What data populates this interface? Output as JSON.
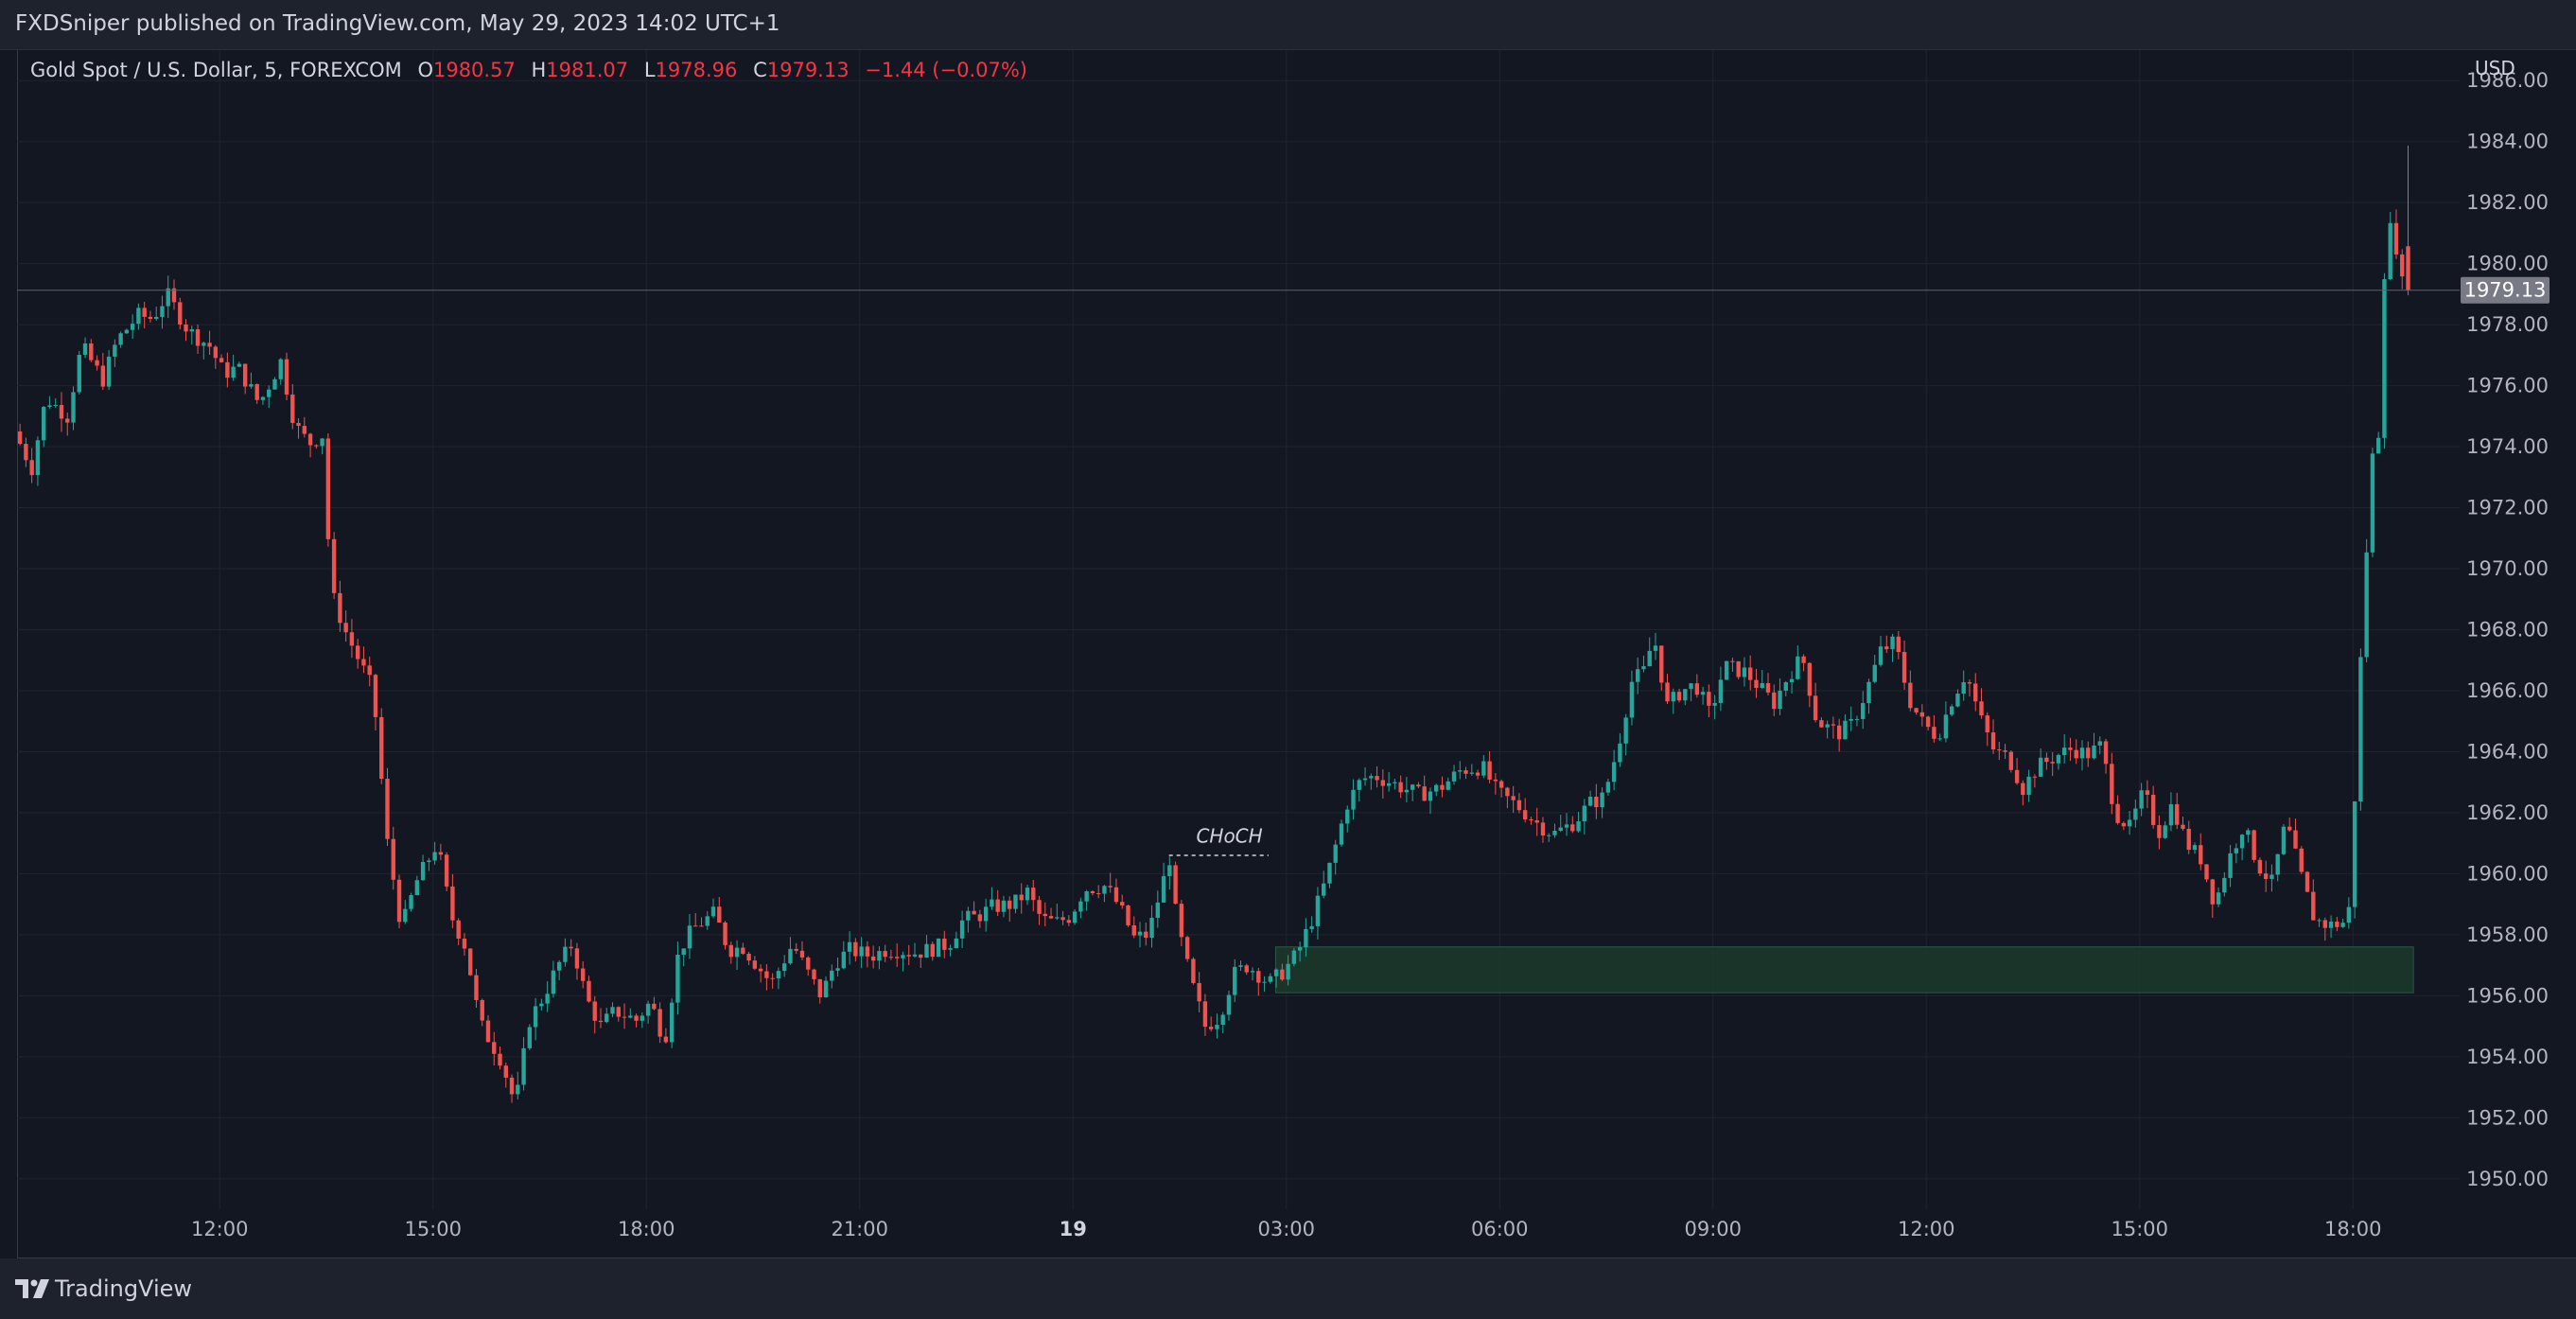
{
  "header": {
    "publisher_line": "FXDSniper published on TradingView.com, May 29, 2023 14:02 UTC+1"
  },
  "legend": {
    "symbol": "Gold Spot / U.S. Dollar, 5, FOREXCOM",
    "open_label": "O",
    "open": "1980.57",
    "high_label": "H",
    "high": "1981.07",
    "low_label": "L",
    "low": "1978.96",
    "close_label": "C",
    "close": "1979.13",
    "change": "−1.44 (−0.07%)"
  },
  "price_axis": {
    "currency": "USD",
    "last_price_label": "1979.13"
  },
  "colors": {
    "up": "#26a69a",
    "down": "#ef5350",
    "background": "#131722",
    "zone": "#1c3a2c",
    "grid": "#1f2430"
  },
  "footer": {
    "brand": "TradingView",
    "logo_icon": "tradingview-logo-icon"
  },
  "chart_data": {
    "type": "candlestick",
    "symbol": "Gold Spot / U.S. Dollar",
    "interval": "5",
    "exchange": "FOREXCOM",
    "currency": "USD",
    "last_price": 1979.13,
    "ylim": [
      1949,
      1987
    ],
    "grid": true,
    "y_ticks": [
      1950,
      1952,
      1954,
      1956,
      1958,
      1960,
      1962,
      1964,
      1966,
      1968,
      1970,
      1972,
      1974,
      1976,
      1978,
      1980,
      1982,
      1984,
      1986
    ],
    "y_tick_labels": [
      "1950.00",
      "1952.00",
      "1954.00",
      "1956.00",
      "1958.00",
      "1960.00",
      "1962.00",
      "1964.00",
      "1966.00",
      "1968.00",
      "1970.00",
      "1972.00",
      "1974.00",
      "1976.00",
      "1978.00",
      "1980.00",
      "1982.00",
      "1984.00",
      "1986.00"
    ],
    "x_ticks": [
      {
        "t": 12,
        "label": "12:00"
      },
      {
        "t": 15,
        "label": "15:00"
      },
      {
        "t": 18,
        "label": "18:00"
      },
      {
        "t": 21,
        "label": "21:00"
      },
      {
        "t": 24,
        "label": "19",
        "bold": true
      },
      {
        "t": 27,
        "label": "03:00"
      },
      {
        "t": 30,
        "label": "06:00"
      },
      {
        "t": 33,
        "label": "09:00"
      },
      {
        "t": 36,
        "label": "12:00"
      },
      {
        "t": 39,
        "label": "15:00"
      },
      {
        "t": 42,
        "label": "18:00"
      }
    ],
    "x_range": [
      9.15,
      43.5
    ],
    "price_path": [
      [
        9.15,
        1974.5
      ],
      [
        9.4,
        1973.3
      ],
      [
        9.6,
        1975.6
      ],
      [
        9.9,
        1975.0
      ],
      [
        10.1,
        1977.3
      ],
      [
        10.4,
        1976.2
      ],
      [
        10.6,
        1977.5
      ],
      [
        10.9,
        1978.3
      ],
      [
        11.1,
        1978.2
      ],
      [
        11.3,
        1979.0
      ],
      [
        11.6,
        1977.8
      ],
      [
        11.9,
        1977.3
      ],
      [
        12.1,
        1976.4
      ],
      [
        12.3,
        1976.6
      ],
      [
        12.6,
        1975.4
      ],
      [
        12.9,
        1976.8
      ],
      [
        13.1,
        1974.7
      ],
      [
        13.3,
        1974.1
      ],
      [
        13.5,
        1974.4
      ],
      [
        13.6,
        1969.3
      ],
      [
        13.8,
        1968.0
      ],
      [
        14.0,
        1967.0
      ],
      [
        14.2,
        1966.0
      ],
      [
        14.4,
        1961.0
      ],
      [
        14.6,
        1958.2
      ],
      [
        14.8,
        1959.7
      ],
      [
        15.1,
        1961.0
      ],
      [
        15.3,
        1958.6
      ],
      [
        15.5,
        1957.6
      ],
      [
        15.7,
        1955.1
      ],
      [
        16.0,
        1953.9
      ],
      [
        16.2,
        1952.4
      ],
      [
        16.4,
        1955.2
      ],
      [
        16.6,
        1956.0
      ],
      [
        16.8,
        1957.0
      ],
      [
        17.0,
        1957.7
      ],
      [
        17.2,
        1955.9
      ],
      [
        17.4,
        1955.0
      ],
      [
        17.6,
        1955.5
      ],
      [
        17.9,
        1955.2
      ],
      [
        18.1,
        1955.8
      ],
      [
        18.3,
        1954.5
      ],
      [
        18.5,
        1957.5
      ],
      [
        18.7,
        1958.2
      ],
      [
        19.0,
        1958.7
      ],
      [
        19.2,
        1957.5
      ],
      [
        19.4,
        1957.6
      ],
      [
        19.6,
        1957.0
      ],
      [
        19.8,
        1956.4
      ],
      [
        20.1,
        1957.7
      ],
      [
        20.3,
        1956.8
      ],
      [
        20.5,
        1956.0
      ],
      [
        20.7,
        1957.1
      ],
      [
        20.9,
        1957.5
      ],
      [
        21.2,
        1957.3
      ],
      [
        21.4,
        1957.5
      ],
      [
        21.6,
        1957.5
      ],
      [
        21.8,
        1957.4
      ],
      [
        22.0,
        1957.5
      ],
      [
        22.3,
        1957.7
      ],
      [
        22.5,
        1958.5
      ],
      [
        22.7,
        1958.6
      ],
      [
        22.9,
        1958.9
      ],
      [
        23.2,
        1959.0
      ],
      [
        23.4,
        1959.4
      ],
      [
        23.6,
        1958.5
      ],
      [
        23.8,
        1958.4
      ],
      [
        24.0,
        1958.6
      ],
      [
        24.2,
        1959.5
      ],
      [
        24.5,
        1959.6
      ],
      [
        24.7,
        1958.9
      ],
      [
        24.9,
        1957.9
      ],
      [
        25.1,
        1958.0
      ],
      [
        25.4,
        1960.5
      ],
      [
        25.5,
        1958.4
      ],
      [
        25.7,
        1956.5
      ],
      [
        25.9,
        1955.0
      ],
      [
        26.1,
        1955.3
      ],
      [
        26.3,
        1956.7
      ],
      [
        26.5,
        1957.0
      ],
      [
        26.8,
        1956.4
      ],
      [
        27.0,
        1956.8
      ],
      [
        27.2,
        1957.4
      ],
      [
        27.4,
        1958.5
      ],
      [
        27.6,
        1959.8
      ],
      [
        27.9,
        1962.3
      ],
      [
        28.1,
        1963.1
      ],
      [
        28.3,
        1963.2
      ],
      [
        28.6,
        1962.9
      ],
      [
        28.9,
        1962.6
      ],
      [
        29.2,
        1962.8
      ],
      [
        29.5,
        1963.4
      ],
      [
        29.8,
        1963.5
      ],
      [
        30.0,
        1962.7
      ],
      [
        30.3,
        1962.2
      ],
      [
        30.6,
        1961.6
      ],
      [
        30.8,
        1961.3
      ],
      [
        31.1,
        1961.7
      ],
      [
        31.3,
        1962.3
      ],
      [
        31.5,
        1962.5
      ],
      [
        31.7,
        1964.1
      ],
      [
        31.9,
        1966.3
      ],
      [
        32.1,
        1966.7
      ],
      [
        32.2,
        1967.9
      ],
      [
        32.4,
        1965.5
      ],
      [
        32.6,
        1966.0
      ],
      [
        32.8,
        1966.2
      ],
      [
        33.0,
        1965.2
      ],
      [
        33.2,
        1966.8
      ],
      [
        33.5,
        1966.6
      ],
      [
        33.7,
        1966.1
      ],
      [
        33.9,
        1965.6
      ],
      [
        34.1,
        1966.5
      ],
      [
        34.3,
        1967.1
      ],
      [
        34.5,
        1965.0
      ],
      [
        34.8,
        1964.6
      ],
      [
        35.0,
        1964.9
      ],
      [
        35.2,
        1966.0
      ],
      [
        35.4,
        1967.3
      ],
      [
        35.6,
        1967.6
      ],
      [
        35.8,
        1965.7
      ],
      [
        36.0,
        1964.9
      ],
      [
        36.2,
        1964.5
      ],
      [
        36.4,
        1965.7
      ],
      [
        36.6,
        1966.6
      ],
      [
        36.8,
        1965.1
      ],
      [
        37.0,
        1964.0
      ],
      [
        37.2,
        1963.8
      ],
      [
        37.4,
        1962.8
      ],
      [
        37.6,
        1963.5
      ],
      [
        37.9,
        1963.9
      ],
      [
        38.1,
        1964.1
      ],
      [
        38.3,
        1963.9
      ],
      [
        38.5,
        1964.2
      ],
      [
        38.7,
        1962.0
      ],
      [
        38.9,
        1961.5
      ],
      [
        39.1,
        1962.7
      ],
      [
        39.3,
        1961.3
      ],
      [
        39.5,
        1962.3
      ],
      [
        39.7,
        1961.0
      ],
      [
        39.9,
        1960.5
      ],
      [
        40.1,
        1959.0
      ],
      [
        40.3,
        1960.5
      ],
      [
        40.5,
        1961.6
      ],
      [
        40.7,
        1960.3
      ],
      [
        40.9,
        1959.7
      ],
      [
        41.1,
        1961.7
      ],
      [
        41.3,
        1960.0
      ],
      [
        41.5,
        1958.5
      ],
      [
        41.7,
        1958.3
      ],
      [
        41.9,
        1958.4
      ],
      [
        42.0,
        1958.9
      ],
      [
        42.15,
        1967.0
      ],
      [
        42.3,
        1973.5
      ],
      [
        42.4,
        1974.5
      ],
      [
        42.5,
        1980.8
      ],
      [
        42.6,
        1981.3
      ],
      [
        42.75,
        1979.1
      ]
    ],
    "annotations": [
      {
        "type": "text",
        "label": "CHoCH",
        "t": 26.0,
        "price": 1961.2
      },
      {
        "type": "dashed_level",
        "t_start": 25.35,
        "t_end": 26.75,
        "price": 1960.6
      },
      {
        "type": "zone",
        "t_start": 26.85,
        "t_end": 42.85,
        "price_low": 1956.1,
        "price_high": 1957.6,
        "color": "#1c3a2c"
      }
    ]
  }
}
